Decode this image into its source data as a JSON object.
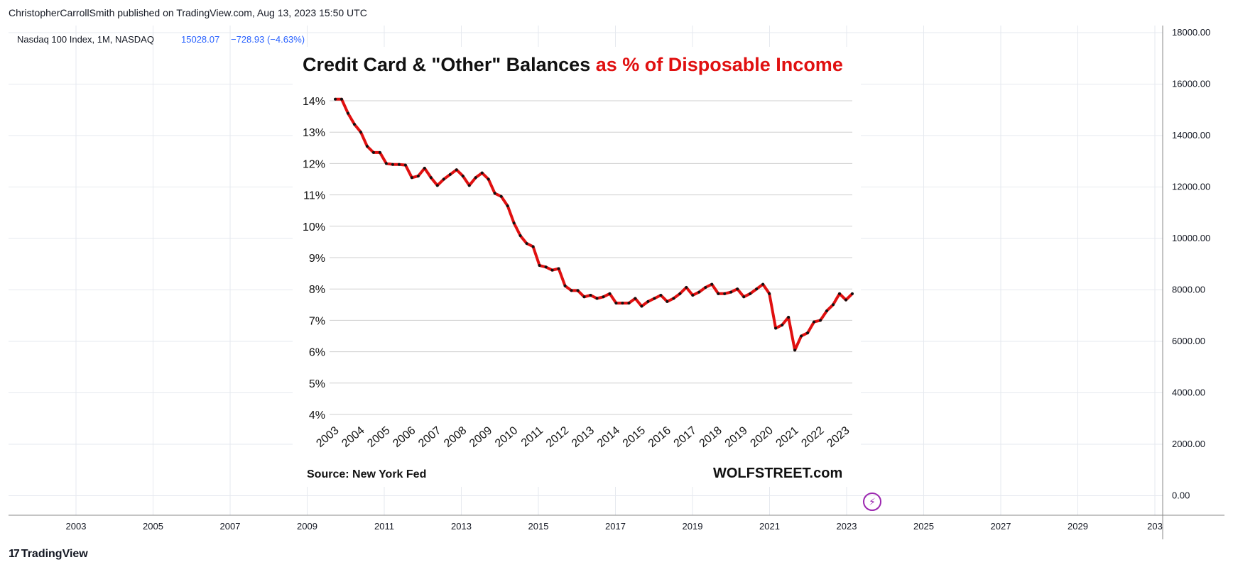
{
  "publisher": {
    "text": "ChristopherCarrollSmith published on TradingView.com, Aug 13, 2023 15:50 UTC"
  },
  "symbol": {
    "name": "Nasdaq 100 Index, 1M, NASDAQ",
    "price": "15028.07",
    "change": "−728.93 (−4.63%)",
    "color": "#2962ff"
  },
  "brand": {
    "text": "TradingView",
    "mark": "17"
  },
  "outer_axis": {
    "x_ticks": [
      "2003",
      "2005",
      "2007",
      "2009",
      "2011",
      "2013",
      "2015",
      "2017",
      "2019",
      "2021",
      "2023",
      "2025",
      "2027",
      "2029",
      "203"
    ],
    "y_ticks": [
      "18000.00",
      "16000.00",
      "14000.00",
      "12000.00",
      "10000.00",
      "8000.00",
      "6000.00",
      "4000.00",
      "2000.00",
      "0.00"
    ]
  },
  "inset": {
    "title_black": "Credit Card & \"Other\" Balances",
    "title_red": "as % of Disposable Income",
    "source": "Source: New York Fed",
    "brand": "WOLFSTREET.com"
  },
  "chart_data": {
    "type": "line",
    "title": "Credit Card & \"Other\" Balances as % of Disposable Income",
    "xlabel": "",
    "ylabel": "",
    "ylim": [
      4,
      14
    ],
    "y_ticks": [
      "4%",
      "5%",
      "6%",
      "7%",
      "8%",
      "9%",
      "10%",
      "11%",
      "12%",
      "13%",
      "14%"
    ],
    "x_ticks": [
      "2003",
      "2004",
      "2005",
      "2006",
      "2007",
      "2008",
      "2009",
      "2010",
      "2011",
      "2012",
      "2013",
      "2014",
      "2015",
      "2016",
      "2017",
      "2018",
      "2019",
      "2020",
      "2021",
      "2022",
      "2023"
    ],
    "grid": true,
    "line_color": "#e01010",
    "marker_color": "#111111",
    "series": [
      {
        "x": [
          2003.0,
          2003.25,
          2003.5,
          2003.75,
          2004.0,
          2004.25,
          2004.5,
          2004.75,
          2005.0,
          2005.25,
          2005.5,
          2005.75,
          2006.0,
          2006.25,
          2006.5,
          2006.75,
          2007.0,
          2007.25,
          2007.5,
          2007.75,
          2008.0,
          2008.25,
          2008.5,
          2008.75,
          2009.0,
          2009.25,
          2009.5,
          2009.75,
          2010.0,
          2010.25,
          2010.5,
          2010.75,
          2011.0,
          2011.25,
          2011.5,
          2011.75,
          2012.0,
          2012.25,
          2012.5,
          2012.75,
          2013.0,
          2013.25,
          2013.5,
          2013.75,
          2014.0,
          2014.25,
          2014.5,
          2014.75,
          2015.0,
          2015.25,
          2015.5,
          2015.75,
          2016.0,
          2016.25,
          2016.5,
          2016.75,
          2017.0,
          2017.25,
          2017.5,
          2017.75,
          2018.0,
          2018.25,
          2018.5,
          2018.75,
          2019.0,
          2019.25,
          2019.5,
          2019.75,
          2020.0,
          2020.25,
          2020.5,
          2020.75,
          2021.0,
          2021.25,
          2021.5,
          2021.75,
          2022.0,
          2022.25,
          2022.5,
          2022.75,
          2023.0,
          2023.25
        ],
        "y": [
          14.05,
          14.05,
          13.6,
          13.25,
          13.0,
          12.55,
          12.35,
          12.35,
          12.0,
          11.97,
          11.97,
          11.95,
          11.55,
          11.6,
          11.85,
          11.55,
          11.3,
          11.5,
          11.65,
          11.8,
          11.6,
          11.3,
          11.55,
          11.7,
          11.5,
          11.05,
          10.95,
          10.65,
          10.1,
          9.7,
          9.45,
          9.35,
          8.75,
          8.7,
          8.6,
          8.65,
          8.1,
          7.95,
          7.95,
          7.75,
          7.8,
          7.7,
          7.75,
          7.85,
          7.55,
          7.55,
          7.55,
          7.7,
          7.45,
          7.6,
          7.7,
          7.8,
          7.6,
          7.7,
          7.85,
          8.05,
          7.8,
          7.9,
          8.05,
          8.15,
          7.85,
          7.85,
          7.9,
          8.0,
          7.75,
          7.85,
          8.0,
          8.15,
          7.85,
          6.75,
          6.85,
          7.1,
          6.05,
          6.5,
          6.6,
          6.95,
          7.0,
          7.3,
          7.5,
          7.85,
          7.65,
          7.85
        ]
      }
    ]
  }
}
